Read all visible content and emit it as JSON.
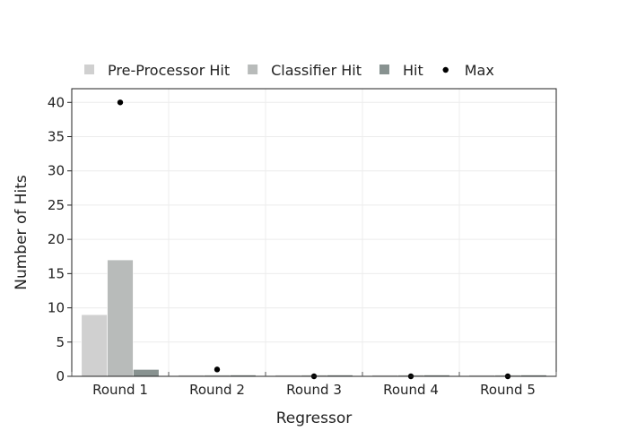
{
  "chart_data": {
    "type": "bar",
    "title": "",
    "xlabel": "Regressor",
    "ylabel": "Number of Hits",
    "categories": [
      "Round 1",
      "Round 2",
      "Round 3",
      "Round 4",
      "Round 5"
    ],
    "ylim": [
      0,
      42
    ],
    "yticks": [
      0,
      5,
      10,
      15,
      20,
      25,
      30,
      35,
      40
    ],
    "grid": true,
    "legend_position": "top-left",
    "series": [
      {
        "name": "Pre-Processor Hit",
        "kind": "bar",
        "color": "#d0d0d0",
        "values": [
          9,
          0,
          0,
          0,
          0
        ]
      },
      {
        "name": "Classifier Hit",
        "kind": "bar",
        "color": "#b8bbba",
        "values": [
          17,
          0,
          0,
          0,
          0
        ]
      },
      {
        "name": "Hit",
        "kind": "bar",
        "color": "#889290",
        "values": [
          1,
          0,
          0,
          0,
          0
        ]
      },
      {
        "name": "Max",
        "kind": "marker",
        "color": "#000000",
        "values": [
          40,
          1,
          0,
          0,
          0
        ]
      }
    ]
  }
}
